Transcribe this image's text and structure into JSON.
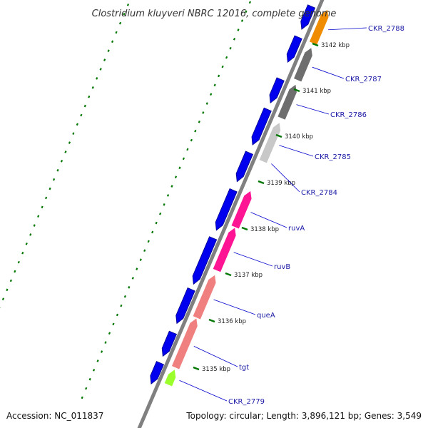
{
  "title": "Clostridium kluyveri NBRC 12016, complete genome",
  "accession_label": "Accession: NC_011837",
  "topology_label": "Topology: circular; Length: 3,896,121 bp; Genes: 3,549",
  "colors": {
    "backbone": "#808080",
    "forward_gene": "#0000ee",
    "tick": "#007700",
    "gene_label": "#1a1aa6",
    "leader": "#0000cc"
  },
  "kbp_ticks": [
    {
      "label": "3142 kbp",
      "kbp": 3142
    },
    {
      "label": "3141 kbp",
      "kbp": 3141
    },
    {
      "label": "3140 kbp",
      "kbp": 3140
    },
    {
      "label": "3139 kbp",
      "kbp": 3139
    },
    {
      "label": "3138 kbp",
      "kbp": 3138
    },
    {
      "label": "3137 kbp",
      "kbp": 3137
    },
    {
      "label": "3136 kbp",
      "kbp": 3136
    },
    {
      "label": "3135 kbp",
      "kbp": 3135
    }
  ],
  "genes": [
    {
      "label": "CKR_2788",
      "color": "#f08c00"
    },
    {
      "label": "CKR_2787",
      "color": "#6e6e6e"
    },
    {
      "label": "CKR_2786",
      "color": "#6e6e6e"
    },
    {
      "label": "CKR_2785",
      "color": "#c8c8c8"
    },
    {
      "label": "CKR_2784",
      "color": ""
    },
    {
      "label": "ruvA",
      "color": "#ff1493"
    },
    {
      "label": "ruvB",
      "color": "#ff1493"
    },
    {
      "label": "queA",
      "color": "#f08080"
    },
    {
      "label": "tgt",
      "color": "#f08080"
    },
    {
      "label": "CKR_2779",
      "color": "#9aff2a"
    }
  ]
}
